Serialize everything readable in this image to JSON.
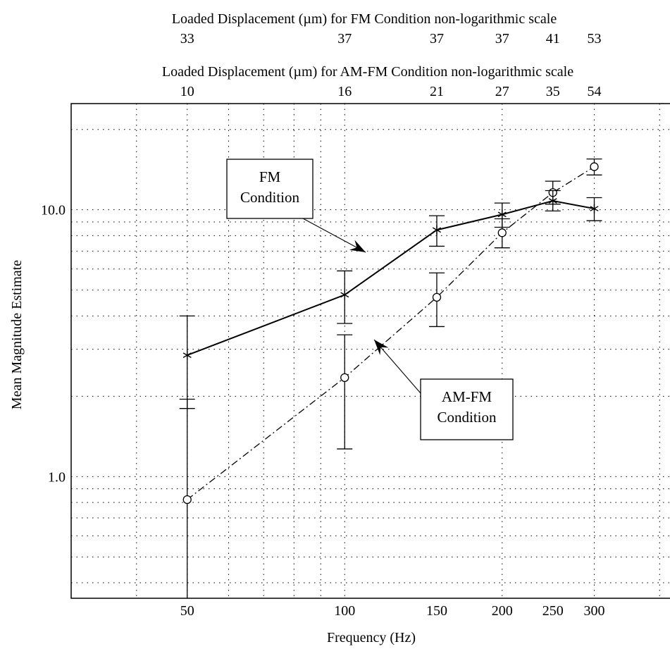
{
  "chart_data": {
    "type": "line",
    "xlabel": "Frequency (Hz)",
    "ylabel": "Mean Magnitude Estimate",
    "x_scale": "log",
    "y_scale": "log",
    "xlim": [
      30,
      420
    ],
    "ylim": [
      0.35,
      25
    ],
    "grid": true,
    "x_ticks": [
      50,
      100,
      150,
      200,
      250,
      300
    ],
    "x_tick_labels": [
      "50",
      "100",
      "150",
      "200",
      "250",
      "300"
    ],
    "y_ticks": [
      1.0,
      10.0
    ],
    "y_tick_labels": [
      "1.0",
      "10.0"
    ],
    "x": [
      50,
      100,
      150,
      200,
      250,
      300
    ],
    "series": [
      {
        "name": "FM Condition",
        "marker": "asterisk",
        "line": "solid",
        "values": [
          2.85,
          4.8,
          8.4,
          9.6,
          10.8,
          10.1
        ],
        "error_low": [
          1.8,
          3.75,
          7.3,
          8.6,
          9.9,
          9.1
        ],
        "error_high": [
          4.0,
          5.9,
          9.5,
          10.6,
          11.8,
          11.1
        ]
      },
      {
        "name": "AM-FM Condition",
        "marker": "circle",
        "line": "dash-dot",
        "values": [
          0.82,
          2.35,
          4.7,
          8.2,
          11.6,
          14.5
        ],
        "error_low": [
          0.3,
          1.27,
          3.65,
          7.2,
          10.5,
          13.5
        ],
        "error_high": [
          1.95,
          3.4,
          5.8,
          9.25,
          12.8,
          15.5
        ]
      }
    ],
    "top_axes": [
      {
        "label": "Loaded Displacement (µm) for FM Condition non-logarithmic scale",
        "tick_labels": [
          "33",
          "37",
          "37",
          "37",
          "41",
          "53"
        ]
      },
      {
        "label": "Loaded Displacement (µm) for AM-FM Condition non-logarithmic scale",
        "tick_labels": [
          "10",
          "16",
          "21",
          "27",
          "35",
          "54"
        ]
      }
    ],
    "annotations": [
      {
        "lines": [
          "FM",
          "Condition"
        ],
        "points_to_series": "FM Condition"
      },
      {
        "lines": [
          "AM-FM",
          "Condition"
        ],
        "points_to_series": "AM-FM Condition"
      }
    ]
  }
}
